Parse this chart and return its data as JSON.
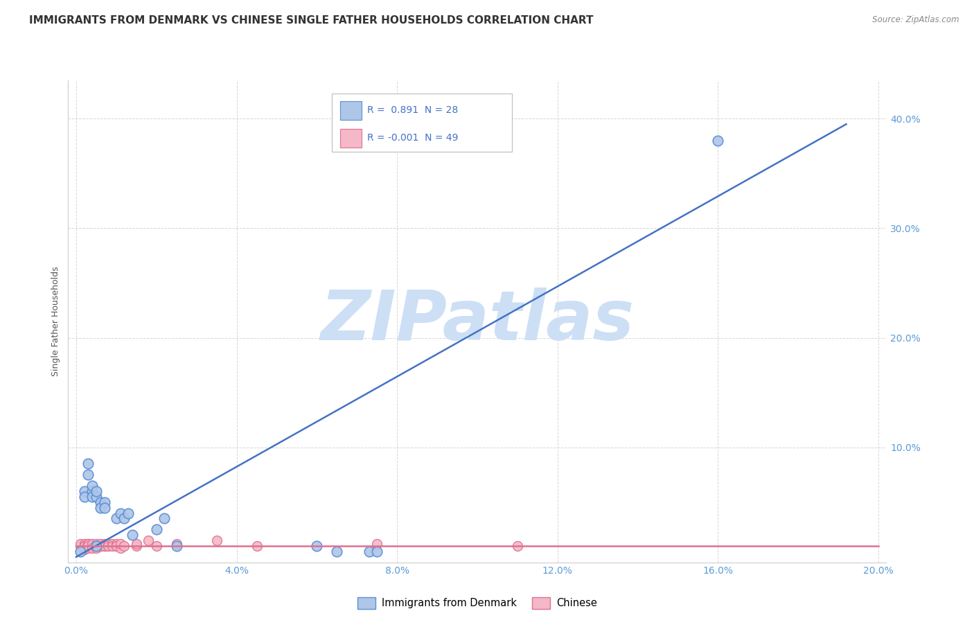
{
  "title": "IMMIGRANTS FROM DENMARK VS CHINESE SINGLE FATHER HOUSEHOLDS CORRELATION CHART",
  "source": "Source: ZipAtlas.com",
  "ylabel": "Single Father Households",
  "xlabel": "",
  "xlim": [
    -0.002,
    0.202
  ],
  "ylim": [
    -0.005,
    0.435
  ],
  "xticks": [
    0.0,
    0.04,
    0.08,
    0.12,
    0.16,
    0.2
  ],
  "xticklabels": [
    "0.0%",
    "4.0%",
    "8.0%",
    "12.0%",
    "16.0%",
    "20.0%"
  ],
  "yticks": [
    0.1,
    0.2,
    0.3,
    0.4
  ],
  "yticklabels": [
    "10.0%",
    "20.0%",
    "30.0%",
    "40.0%"
  ],
  "blue_color": "#aec6e8",
  "pink_color": "#f4b8c8",
  "blue_edge_color": "#5b8fd4",
  "pink_edge_color": "#e07090",
  "blue_line_color": "#4472c4",
  "pink_line_color": "#e07090",
  "watermark": "ZIPatlas",
  "watermark_color": "#ccdff5",
  "background_color": "#ffffff",
  "blue_scatter_x": [
    0.001,
    0.002,
    0.002,
    0.003,
    0.003,
    0.004,
    0.004,
    0.004,
    0.005,
    0.005,
    0.005,
    0.006,
    0.006,
    0.007,
    0.007,
    0.01,
    0.011,
    0.012,
    0.013,
    0.014,
    0.02,
    0.022,
    0.025,
    0.06,
    0.065,
    0.073,
    0.075,
    0.16
  ],
  "blue_scatter_y": [
    0.005,
    0.06,
    0.055,
    0.075,
    0.085,
    0.06,
    0.055,
    0.065,
    0.055,
    0.06,
    0.01,
    0.05,
    0.045,
    0.05,
    0.045,
    0.035,
    0.04,
    0.035,
    0.04,
    0.02,
    0.025,
    0.035,
    0.01,
    0.01,
    0.005,
    0.005,
    0.005,
    0.38
  ],
  "pink_scatter_x": [
    0.001,
    0.001,
    0.001,
    0.001,
    0.002,
    0.002,
    0.002,
    0.002,
    0.002,
    0.003,
    0.003,
    0.003,
    0.003,
    0.003,
    0.004,
    0.004,
    0.004,
    0.004,
    0.004,
    0.005,
    0.005,
    0.005,
    0.005,
    0.006,
    0.006,
    0.006,
    0.007,
    0.007,
    0.007,
    0.008,
    0.008,
    0.008,
    0.008,
    0.009,
    0.009,
    0.01,
    0.01,
    0.01,
    0.011,
    0.011,
    0.012,
    0.015,
    0.015,
    0.02,
    0.025,
    0.035,
    0.04,
    0.07,
    0.105
  ],
  "pink_scatter_x2": [
    0.001,
    0.001,
    0.001,
    0.002,
    0.002,
    0.002,
    0.002,
    0.002,
    0.003,
    0.003,
    0.003,
    0.003,
    0.003,
    0.003,
    0.004,
    0.004,
    0.004,
    0.004,
    0.005,
    0.005,
    0.005,
    0.005,
    0.006,
    0.006,
    0.006,
    0.007,
    0.007,
    0.007,
    0.007,
    0.008,
    0.008,
    0.008,
    0.009,
    0.009,
    0.01,
    0.01,
    0.01,
    0.011,
    0.011,
    0.012,
    0.015,
    0.015,
    0.018,
    0.02,
    0.025,
    0.035,
    0.045,
    0.075,
    0.11
  ],
  "pink_scatter_y": [
    0.01,
    0.005,
    0.012,
    0.008,
    0.012,
    0.01,
    0.01,
    0.007,
    0.012,
    0.008,
    0.012,
    0.01,
    0.012,
    0.01,
    0.01,
    0.01,
    0.012,
    0.008,
    0.012,
    0.01,
    0.01,
    0.008,
    0.01,
    0.01,
    0.012,
    0.01,
    0.01,
    0.012,
    0.01,
    0.01,
    0.012,
    0.01,
    0.012,
    0.01,
    0.012,
    0.01,
    0.01,
    0.008,
    0.012,
    0.01,
    0.01,
    0.012,
    0.015,
    0.01,
    0.012,
    0.015,
    0.01,
    0.012,
    0.01
  ],
  "blue_line_x": [
    0.0,
    0.192
  ],
  "blue_line_y": [
    0.0,
    0.395
  ],
  "pink_line_x": [
    0.0,
    0.2
  ],
  "pink_line_y": [
    0.01,
    0.01
  ],
  "title_fontsize": 11,
  "axis_fontsize": 9,
  "tick_fontsize": 10
}
